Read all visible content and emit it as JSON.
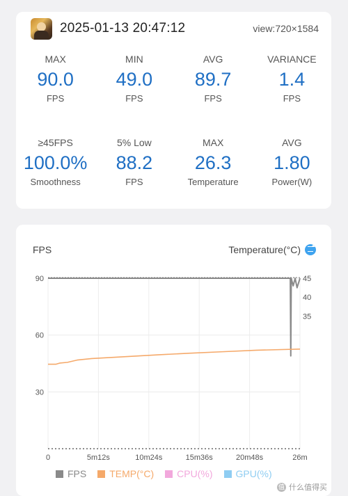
{
  "header": {
    "datetime": "2025-01-13 20:47:12",
    "view": "view:720×1584",
    "app_icon": "game-app-icon"
  },
  "stats": [
    {
      "label": "MAX",
      "value": "90.0",
      "unit": "FPS"
    },
    {
      "label": "MIN",
      "value": "49.0",
      "unit": "FPS"
    },
    {
      "label": "AVG",
      "value": "89.7",
      "unit": "FPS"
    },
    {
      "label": "VARIANCE",
      "value": "1.4",
      "unit": "FPS"
    },
    {
      "label": "≥45FPS",
      "value": "100.0%",
      "unit": "Smoothness"
    },
    {
      "label": "5% Low",
      "value": "88.2",
      "unit": "FPS"
    },
    {
      "label": "MAX",
      "value": "26.3",
      "unit": "Temperature"
    },
    {
      "label": "AVG",
      "value": "1.80",
      "unit": "Power(W)"
    }
  ],
  "chart": {
    "left_title": "FPS",
    "right_title": "Temperature(°C)",
    "swap_icon": "swap-icon"
  },
  "colors": {
    "fps": "#8a8a8a",
    "temp": "#f5a96a",
    "cpu": "#f2a8dc",
    "gpu": "#8fcdf2",
    "value_blue": "#1f6fc4"
  },
  "chart_data": {
    "type": "line",
    "x_tick_labels": [
      "0",
      "5m12s",
      "10m24s",
      "15m36s",
      "20m48s",
      "26m"
    ],
    "x_minutes": [
      0,
      5.2,
      10.4,
      15.6,
      20.8,
      26
    ],
    "xlim": [
      0,
      26
    ],
    "y_left": {
      "label": "FPS",
      "ticks": [
        30,
        60,
        90
      ],
      "range": [
        0,
        90
      ]
    },
    "y_right": {
      "label": "Temperature(°C)",
      "ticks": [
        35,
        40,
        45
      ],
      "range": [
        0,
        45
      ]
    },
    "grid": true,
    "legend_position": "bottom",
    "legend": [
      "FPS",
      "TEMP(°C)",
      "CPU(%)",
      "GPU(%)"
    ],
    "series": [
      {
        "name": "FPS",
        "axis": "left",
        "x": [
          0,
          2,
          4,
          6,
          8,
          10,
          12,
          14,
          16,
          18,
          20,
          22,
          24.2,
          25.0,
          25.05,
          25.1,
          25.3,
          25.5,
          25.7,
          26
        ],
        "y": [
          90,
          90,
          90,
          90,
          90,
          90,
          90,
          90,
          90,
          90,
          90,
          90,
          90,
          90,
          49,
          90,
          86,
          90,
          85,
          90
        ]
      },
      {
        "name": "TEMP(°C)",
        "axis": "right",
        "x": [
          0,
          0.8,
          1.2,
          2,
          2.5,
          3,
          4.5,
          8,
          11.5,
          14.5,
          18,
          21.5,
          26
        ],
        "y": [
          22.3,
          22.3,
          22.6,
          22.8,
          23.1,
          23.4,
          23.8,
          24.3,
          24.8,
          25.2,
          25.6,
          26.0,
          26.3
        ]
      }
    ]
  },
  "watermark": {
    "icon": "zhi-icon",
    "text": "什么值得买"
  }
}
